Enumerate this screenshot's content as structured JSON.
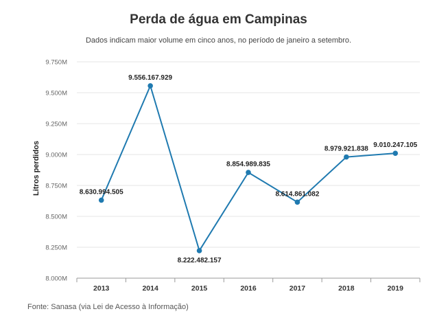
{
  "header": {
    "title": "Perda de água em Campinas",
    "subtitle": "Dados indicam maior volume em cinco anos, no período de janeiro a setembro."
  },
  "footer": {
    "source": "Fonte: Sanasa (via Lei de Acesso à Informação)"
  },
  "colors": {
    "series": "#1f7ab0",
    "grid": "#e4e4e4",
    "axis": "#999999"
  },
  "chart_data": {
    "type": "line",
    "title": "Perda de água em Campinas",
    "subtitle": "Dados indicam maior volume em cinco anos, no período de janeiro a setembro.",
    "xlabel": "",
    "ylabel": "Litros perdidos",
    "categories": [
      "2013",
      "2014",
      "2015",
      "2016",
      "2017",
      "2018",
      "2019"
    ],
    "series": [
      {
        "values": [
          8630994505,
          9556167929,
          8222482157,
          8854989835,
          8614861082,
          8979921838,
          9010247105
        ],
        "labels": [
          "8.630.994.505",
          "9.556.167.929",
          "8.222.482.157",
          "8.854.989.835",
          "8.614.861.082",
          "8.979.921.838",
          "9.010.247.105"
        ]
      }
    ],
    "ylim": [
      8000000000,
      9750000000
    ],
    "yticks": [
      8000000000,
      8250000000,
      8500000000,
      8750000000,
      9000000000,
      9250000000,
      9500000000,
      9750000000
    ],
    "ytick_labels": [
      "8.000M",
      "8.250M",
      "8.500M",
      "8.750M",
      "9.000M",
      "9.250M",
      "9.500M",
      "9.750M"
    ],
    "grid": true,
    "legend": "none"
  }
}
